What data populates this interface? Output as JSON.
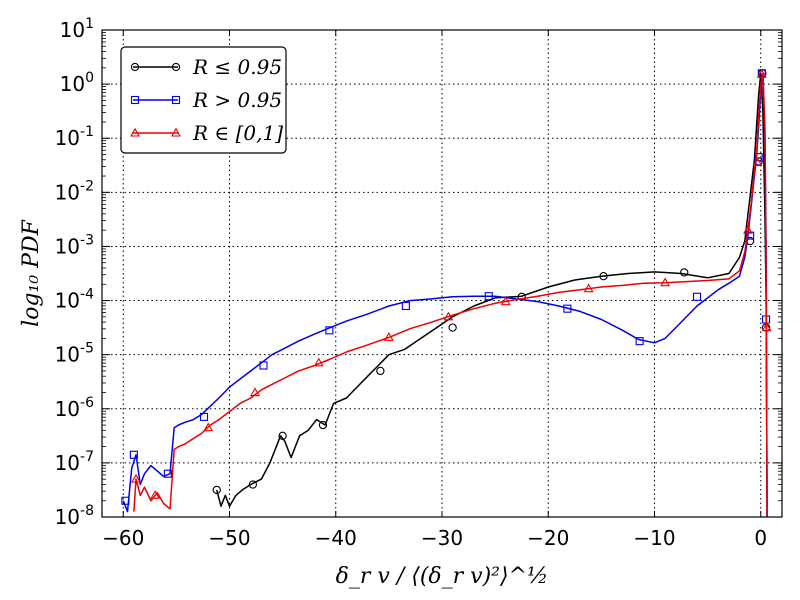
{
  "chart_data": {
    "type": "line",
    "title": "",
    "xlabel": "δ_r v / ⟨(δ_r v)²⟩^½",
    "ylabel": "log₁₀ PDF",
    "xlim": [
      -62,
      2
    ],
    "ylim_log10": [
      -8,
      1
    ],
    "yscale": "log",
    "grid": true,
    "legend_position": "top-left",
    "x_ticks": [
      {
        "value": -60,
        "label": "−60"
      },
      {
        "value": -50,
        "label": "−50"
      },
      {
        "value": -40,
        "label": "−40"
      },
      {
        "value": -30,
        "label": "−30"
      },
      {
        "value": -20,
        "label": "−20"
      },
      {
        "value": -10,
        "label": "−10"
      },
      {
        "value": 0,
        "label": "0"
      }
    ],
    "y_ticks": [
      {
        "exp": 1,
        "base": "10",
        "sup": "1"
      },
      {
        "exp": 0,
        "base": "10",
        "sup": "0"
      },
      {
        "exp": -1,
        "base": "10",
        "sup": "-1"
      },
      {
        "exp": -2,
        "base": "10",
        "sup": "-2"
      },
      {
        "exp": -3,
        "base": "10",
        "sup": "-3"
      },
      {
        "exp": -4,
        "base": "10",
        "sup": "-4"
      },
      {
        "exp": -5,
        "base": "10",
        "sup": "-5"
      },
      {
        "exp": -6,
        "base": "10",
        "sup": "-6"
      },
      {
        "exp": -7,
        "base": "10",
        "sup": "-7"
      },
      {
        "exp": -8,
        "base": "10",
        "sup": "-8"
      }
    ],
    "series": [
      {
        "name": "R ≤ 0.95",
        "color": "#000000",
        "marker": "circle",
        "x": [
          -51.2,
          -50.8,
          -50.4,
          -50.0,
          -49.4,
          -48.8,
          -48.0,
          -47.0,
          -46.2,
          -45.6,
          -45.2,
          -44.8,
          -44.2,
          -43.4,
          -42.6,
          -41.8,
          -41.0,
          -40.2,
          -39.0,
          -38.0,
          -37.0,
          -36.0,
          -35.0,
          -33.5,
          -32.0,
          -30.5,
          -29.0,
          -27.0,
          -25.0,
          -22.5,
          -20.0,
          -17.5,
          -15.0,
          -12.5,
          -10.0,
          -7.5,
          -5.0,
          -3.0,
          -2.0,
          -1.5,
          -1.2,
          -0.9,
          -0.6,
          -0.4,
          -0.2,
          0.0,
          0.2,
          0.4,
          0.5,
          0.6
        ],
        "log10_y": [
          -7.5,
          -7.8,
          -7.6,
          -7.8,
          -7.6,
          -7.5,
          -7.4,
          -7.3,
          -7.0,
          -6.7,
          -6.5,
          -6.6,
          -6.9,
          -6.5,
          -6.4,
          -6.2,
          -6.3,
          -5.9,
          -5.8,
          -5.6,
          -5.4,
          -5.2,
          -5.0,
          -4.9,
          -4.7,
          -4.5,
          -4.3,
          -4.1,
          -3.95,
          -3.92,
          -3.75,
          -3.62,
          -3.55,
          -3.5,
          -3.47,
          -3.5,
          -3.58,
          -3.5,
          -3.2,
          -2.9,
          -2.4,
          -1.9,
          -1.4,
          -0.8,
          -0.2,
          0.2,
          -0.5,
          -2.5,
          -4.0,
          -8.0
        ],
        "markers": [
          [
            -51.2,
            -7.5
          ],
          [
            -47.8,
            -7.4
          ],
          [
            -45.0,
            -6.5
          ],
          [
            -41.2,
            -6.3
          ],
          [
            -35.8,
            -5.3
          ],
          [
            -29.0,
            -4.5
          ],
          [
            -22.5,
            -3.93
          ],
          [
            -14.8,
            -3.55
          ],
          [
            -7.2,
            -3.48
          ],
          [
            -1.0,
            -2.9
          ],
          [
            -0.2,
            -1.43
          ],
          [
            0.15,
            0.2
          ],
          [
            0.5,
            -4.5
          ]
        ]
      },
      {
        "name": "R > 0.95",
        "color": "#0000ee",
        "marker": "square",
        "x": [
          -60.0,
          -59.6,
          -59.2,
          -58.8,
          -58.4,
          -58.0,
          -57.4,
          -56.8,
          -56.2,
          -55.6,
          -55.2,
          -54.8,
          -54.2,
          -53.4,
          -52.6,
          -51.8,
          -51.0,
          -50.0,
          -49.0,
          -48.0,
          -47.0,
          -46.0,
          -45.0,
          -43.5,
          -42.0,
          -40.5,
          -39.0,
          -37.0,
          -35.0,
          -33.0,
          -31.0,
          -29.0,
          -27.0,
          -25.0,
          -23.0,
          -21.0,
          -19.0,
          -17.0,
          -15.0,
          -13.0,
          -11.5,
          -10.0,
          -9.0,
          -8.0,
          -6.0,
          -4.0,
          -3.0,
          -2.0,
          -1.5,
          -1.2,
          -0.9,
          -0.6,
          -0.4,
          -0.2,
          0.0,
          0.2,
          0.4,
          0.5,
          0.6
        ],
        "log10_y": [
          -7.7,
          -7.9,
          -7.1,
          -6.85,
          -7.4,
          -7.2,
          -7.05,
          -7.15,
          -7.25,
          -7.2,
          -6.35,
          -6.3,
          -6.25,
          -6.2,
          -6.1,
          -5.95,
          -5.8,
          -5.6,
          -5.45,
          -5.3,
          -5.15,
          -5.0,
          -4.9,
          -4.75,
          -4.62,
          -4.5,
          -4.38,
          -4.25,
          -4.1,
          -4.0,
          -3.97,
          -3.93,
          -3.92,
          -3.92,
          -3.97,
          -4.02,
          -4.1,
          -4.2,
          -4.35,
          -4.55,
          -4.72,
          -4.78,
          -4.7,
          -4.5,
          -4.1,
          -3.8,
          -3.68,
          -3.55,
          -3.2,
          -2.8,
          -2.25,
          -1.7,
          -1.35,
          -0.8,
          -0.1,
          0.2,
          -1.0,
          -3.0,
          -8.0
        ],
        "markers": [
          [
            -59.8,
            -7.7
          ],
          [
            -59.0,
            -6.85
          ],
          [
            -55.8,
            -7.2
          ],
          [
            -52.4,
            -6.15
          ],
          [
            -46.8,
            -5.2
          ],
          [
            -40.6,
            -4.55
          ],
          [
            -33.4,
            -4.1
          ],
          [
            -25.6,
            -3.92
          ],
          [
            -18.2,
            -4.15
          ],
          [
            -11.4,
            -4.75
          ],
          [
            -6.0,
            -3.93
          ],
          [
            -1.0,
            -2.8
          ],
          [
            -0.2,
            -1.35
          ],
          [
            0.1,
            0.2
          ],
          [
            0.5,
            -4.35
          ]
        ]
      },
      {
        "name": "R ∈ [0,1]",
        "color": "#ee0000",
        "marker": "triangle",
        "x": [
          -59.0,
          -58.8,
          -58.4,
          -58.0,
          -57.4,
          -56.8,
          -56.2,
          -55.6,
          -55.2,
          -54.8,
          -54.2,
          -53.4,
          -52.6,
          -51.8,
          -51.0,
          -50.0,
          -49.0,
          -48.0,
          -47.0,
          -46.0,
          -45.0,
          -43.5,
          -42.0,
          -40.5,
          -39.0,
          -37.0,
          -35.0,
          -33.0,
          -31.0,
          -29.0,
          -27.0,
          -25.0,
          -23.0,
          -21.0,
          -19.0,
          -17.0,
          -15.0,
          -13.0,
          -11.0,
          -9.0,
          -7.0,
          -5.0,
          -3.0,
          -2.0,
          -1.5,
          -1.2,
          -0.9,
          -0.6,
          -0.4,
          -0.2,
          0.0,
          0.2,
          0.4,
          0.5,
          0.6
        ],
        "log10_y": [
          -7.9,
          -7.3,
          -7.6,
          -7.45,
          -7.7,
          -7.55,
          -7.75,
          -7.85,
          -6.75,
          -6.7,
          -6.65,
          -6.55,
          -6.45,
          -6.3,
          -6.2,
          -6.05,
          -5.9,
          -5.8,
          -5.65,
          -5.55,
          -5.45,
          -5.3,
          -5.2,
          -5.08,
          -4.95,
          -4.82,
          -4.68,
          -4.52,
          -4.4,
          -4.27,
          -4.15,
          -4.05,
          -3.98,
          -3.92,
          -3.85,
          -3.8,
          -3.75,
          -3.72,
          -3.68,
          -3.67,
          -3.65,
          -3.63,
          -3.6,
          -3.45,
          -3.1,
          -2.7,
          -2.2,
          -1.6,
          -1.3,
          -0.6,
          0.0,
          0.2,
          -0.8,
          -3.5,
          -8.0
        ],
        "markers": [
          [
            -58.8,
            -7.3
          ],
          [
            -57.0,
            -7.6
          ],
          [
            -52.0,
            -6.35
          ],
          [
            -47.6,
            -5.7
          ],
          [
            -41.6,
            -5.15
          ],
          [
            -35.0,
            -4.68
          ],
          [
            -29.4,
            -4.3
          ],
          [
            -24.0,
            -4.02
          ],
          [
            -16.2,
            -3.78
          ],
          [
            -9.0,
            -3.67
          ],
          [
            -1.2,
            -2.7
          ],
          [
            -0.3,
            -1.45
          ],
          [
            0.1,
            0.18
          ],
          [
            0.55,
            -4.5
          ]
        ]
      }
    ]
  }
}
